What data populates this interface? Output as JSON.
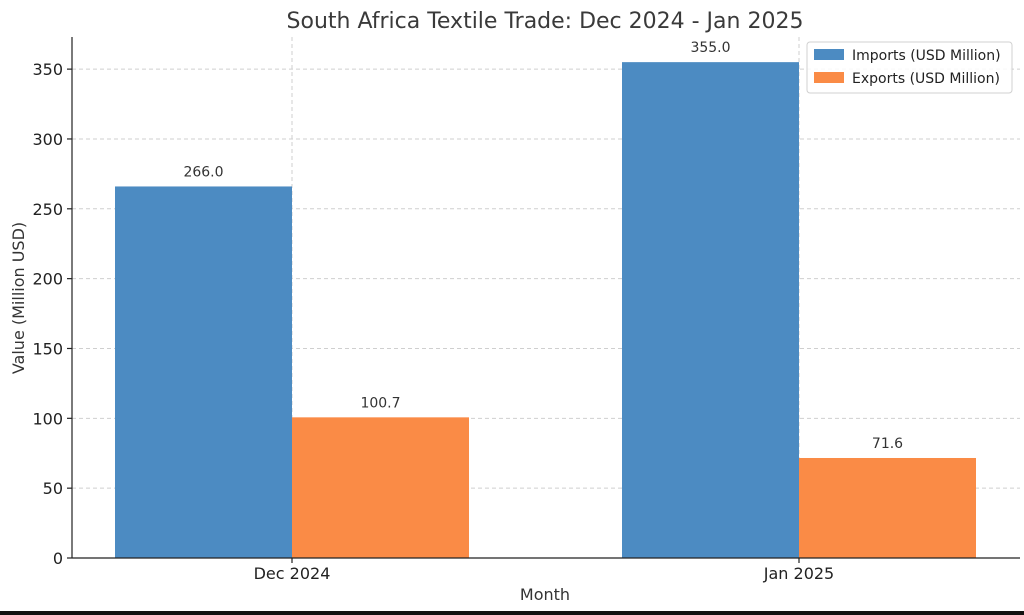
{
  "chart_data": {
    "type": "bar",
    "title": "South Africa Textile Trade: Dec 2024 - Jan 2025",
    "xlabel": "Month",
    "ylabel": "Value (Million USD)",
    "categories": [
      "Dec 2024",
      "Jan 2025"
    ],
    "series": [
      {
        "name": "Imports (USD Million)",
        "values": [
          266.0,
          355.0
        ],
        "labels": [
          "266.0",
          "355.0"
        ],
        "color": "#4c8bc2"
      },
      {
        "name": "Exports (USD Million)",
        "values": [
          100.7,
          71.6
        ],
        "labels": [
          "100.7",
          "71.6"
        ],
        "color": "#fa8b46"
      }
    ],
    "ylim": [
      0,
      373
    ],
    "yticks": [
      0,
      50,
      100,
      150,
      200,
      250,
      300,
      350
    ],
    "ytick_labels": [
      "0",
      "50",
      "100",
      "150",
      "200",
      "250",
      "300",
      "350"
    ],
    "grid": true,
    "legend_position": "top-right"
  }
}
